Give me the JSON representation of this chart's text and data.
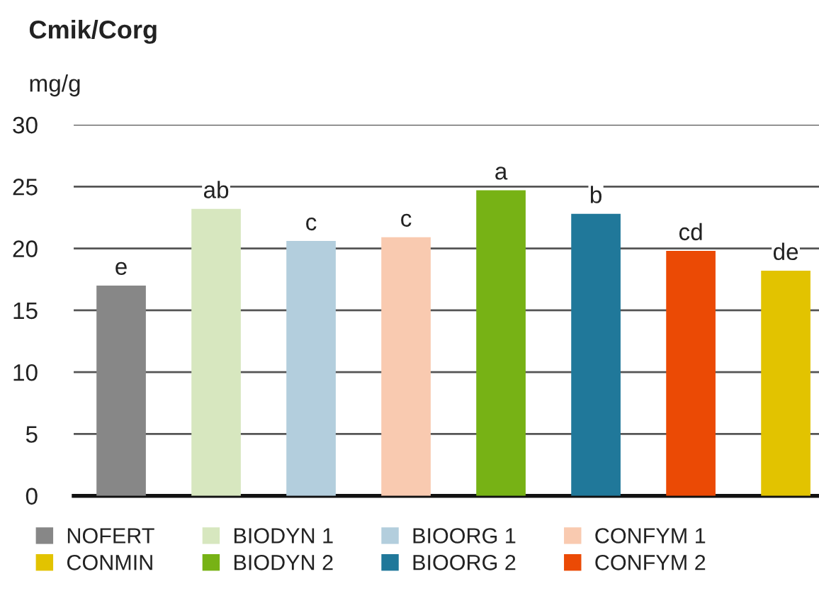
{
  "chart_data": {
    "type": "bar",
    "title": "Cmik/Corg",
    "ylabel": "mg/g",
    "categories": [
      null,
      null,
      null,
      null,
      null,
      null,
      null,
      null
    ],
    "series": [
      {
        "name": "NOFERT",
        "color": "#878787",
        "values": [
          17.0,
          null,
          null,
          null,
          null,
          null,
          null,
          null
        ],
        "value_labels": [
          "e",
          null,
          null,
          null,
          null,
          null,
          null,
          null
        ]
      },
      {
        "name": "BIODYN 1",
        "color": "#d7e7bf",
        "values": [
          null,
          23.2,
          null,
          null,
          null,
          null,
          null,
          null
        ],
        "value_labels": [
          null,
          "ab",
          null,
          null,
          null,
          null,
          null,
          null
        ]
      },
      {
        "name": "BIOORG 1",
        "color": "#b3cedd",
        "values": [
          null,
          null,
          20.6,
          null,
          null,
          null,
          null,
          null
        ],
        "value_labels": [
          null,
          null,
          "c",
          null,
          null,
          null,
          null,
          null
        ]
      },
      {
        "name": "CONFYM 1",
        "color": "#f9cab0",
        "values": [
          null,
          null,
          null,
          20.9,
          null,
          null,
          null,
          null
        ],
        "value_labels": [
          null,
          null,
          null,
          "c",
          null,
          null,
          null,
          null
        ]
      },
      {
        "name": "CONMIN",
        "color": "#e2c300",
        "values": [
          null,
          null,
          null,
          null,
          null,
          null,
          null,
          18.2
        ],
        "value_labels": [
          null,
          null,
          null,
          null,
          null,
          null,
          null,
          "de"
        ]
      },
      {
        "name": "BIODYN 2",
        "color": "#77b215",
        "values": [
          null,
          null,
          null,
          null,
          24.7,
          null,
          null,
          null
        ],
        "value_labels": [
          null,
          null,
          null,
          null,
          "a",
          null,
          null,
          null
        ]
      },
      {
        "name": "BIOORG 2",
        "color": "#20789a",
        "values": [
          null,
          null,
          null,
          null,
          null,
          22.8,
          null,
          null
        ],
        "value_labels": [
          null,
          null,
          null,
          null,
          null,
          "b",
          null,
          null
        ]
      },
      {
        "name": "CONFYM 2",
        "color": "#eb4a05",
        "values": [
          null,
          null,
          null,
          null,
          null,
          null,
          19.8,
          null
        ],
        "value_labels": [
          null,
          null,
          null,
          null,
          null,
          null,
          "cd",
          null
        ]
      }
    ],
    "ylim": [
      0,
      30
    ],
    "yticks": [
      0,
      5,
      10,
      15,
      20,
      25,
      30
    ],
    "grid": "y",
    "legend": "bottom",
    "tick_labels": "y"
  }
}
